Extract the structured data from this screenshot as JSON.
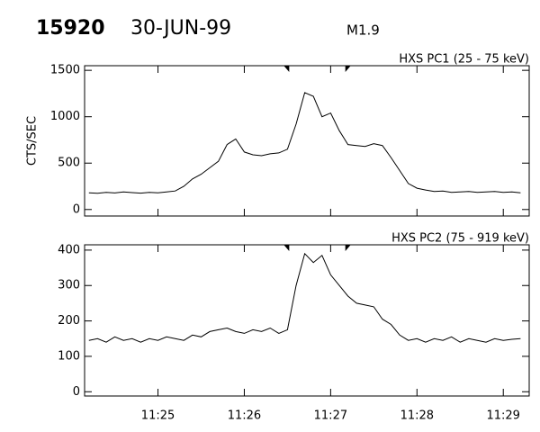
{
  "header": {
    "id": "15920",
    "date": "30-JUN-99",
    "class": "M1.9"
  },
  "chart_data": [
    {
      "type": "line",
      "title": "HXS PC1 (25 - 75 keV)",
      "y_label": "CTS/SEC",
      "color": "#000000",
      "x": [
        24.2,
        24.3,
        24.4,
        24.5,
        24.6,
        24.7,
        24.8,
        24.9,
        25.0,
        25.1,
        25.2,
        25.3,
        25.4,
        25.5,
        25.6,
        25.7,
        25.8,
        25.9,
        26.0,
        26.1,
        26.2,
        26.3,
        26.4,
        26.5,
        26.6,
        26.7,
        26.8,
        26.9,
        27.0,
        27.1,
        27.2,
        27.3,
        27.4,
        27.5,
        27.6,
        27.7,
        27.8,
        27.9,
        28.0,
        28.1,
        28.2,
        28.3,
        28.4,
        28.5,
        28.6,
        28.7,
        28.8,
        28.9,
        29.0,
        29.1,
        29.2
      ],
      "values": [
        180,
        175,
        185,
        178,
        190,
        182,
        176,
        185,
        180,
        190,
        200,
        250,
        330,
        380,
        450,
        520,
        700,
        760,
        620,
        590,
        580,
        600,
        610,
        650,
        920,
        1260,
        1220,
        1000,
        1040,
        850,
        700,
        690,
        680,
        710,
        690,
        560,
        420,
        280,
        230,
        210,
        195,
        200,
        185,
        190,
        195,
        185,
        190,
        195,
        185,
        190,
        180
      ],
      "xlim": [
        24.15,
        29.3
      ],
      "ylim": [
        -70,
        1550
      ],
      "yticks": [
        0,
        500,
        1000,
        1500
      ],
      "xticks": [
        {
          "value": 25,
          "label": "11:25"
        },
        {
          "value": 26,
          "label": "11:26"
        },
        {
          "value": 27,
          "label": "11:27"
        },
        {
          "value": 28,
          "label": "11:28"
        },
        {
          "value": 29,
          "label": "11:29"
        }
      ],
      "markers": [
        26.52,
        27.17
      ],
      "show_xtick_labels": false
    },
    {
      "type": "line",
      "title": "HXS PC2 (75 - 919 keV)",
      "color": "#000000",
      "x": [
        24.2,
        24.3,
        24.4,
        24.5,
        24.6,
        24.7,
        24.8,
        24.9,
        25.0,
        25.1,
        25.2,
        25.3,
        25.4,
        25.5,
        25.6,
        25.7,
        25.8,
        25.9,
        26.0,
        26.1,
        26.2,
        26.3,
        26.4,
        26.5,
        26.6,
        26.7,
        26.8,
        26.9,
        27.0,
        27.1,
        27.2,
        27.3,
        27.4,
        27.5,
        27.6,
        27.7,
        27.8,
        27.9,
        28.0,
        28.1,
        28.2,
        28.3,
        28.4,
        28.5,
        28.6,
        28.7,
        28.8,
        28.9,
        29.0,
        29.1,
        29.2
      ],
      "values": [
        145,
        150,
        140,
        155,
        145,
        150,
        140,
        150,
        145,
        155,
        150,
        145,
        160,
        155,
        170,
        175,
        180,
        170,
        165,
        175,
        170,
        180,
        165,
        175,
        300,
        390,
        365,
        385,
        330,
        300,
        270,
        250,
        245,
        240,
        205,
        190,
        160,
        145,
        150,
        140,
        150,
        145,
        155,
        140,
        150,
        145,
        140,
        150,
        145,
        148,
        150
      ],
      "xlim": [
        24.15,
        29.3
      ],
      "ylim": [
        -12,
        415
      ],
      "yticks": [
        0,
        100,
        200,
        300,
        400
      ],
      "xticks": [
        {
          "value": 25,
          "label": "11:25"
        },
        {
          "value": 26,
          "label": "11:26"
        },
        {
          "value": 27,
          "label": "11:27"
        },
        {
          "value": 28,
          "label": "11:28"
        },
        {
          "value": 29,
          "label": "11:29"
        }
      ],
      "markers": [
        26.52,
        27.17
      ],
      "show_xtick_labels": true
    }
  ]
}
